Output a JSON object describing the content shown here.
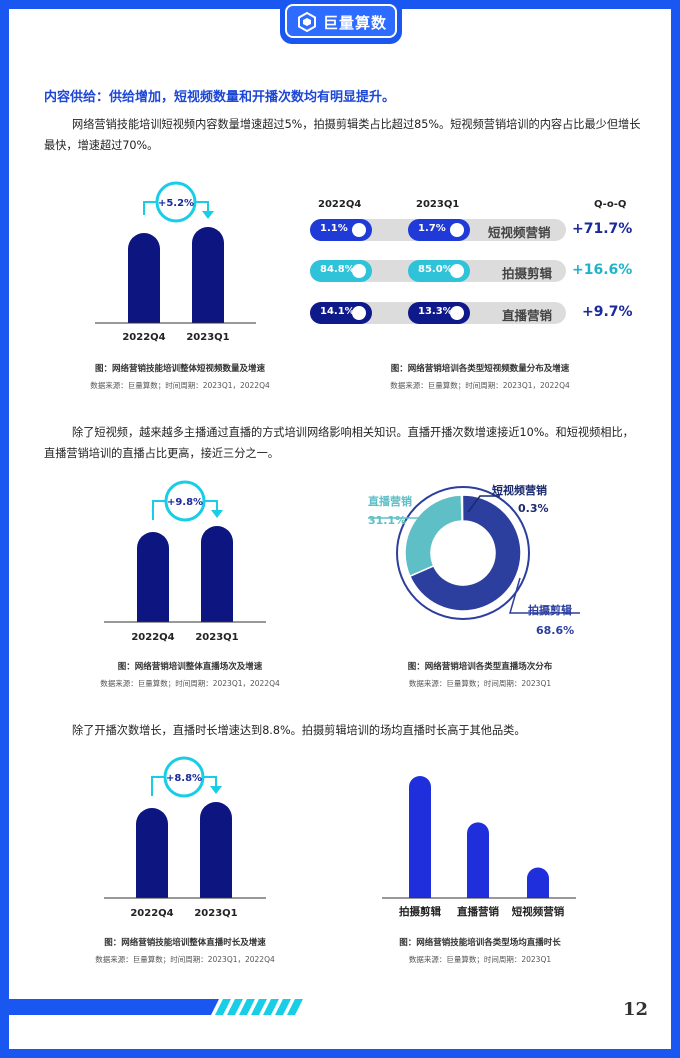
{
  "header": {
    "logo_text": "巨量算数"
  },
  "section": {
    "heading": "内容供给：供给增加，短视频数量和开播次数均有明显提升。",
    "para1": "网络营销技能培训短视频内容数量增速超过5%，拍摄剪辑类占比超过85%。短视频营销培训的内容占比最少但增长最快，增速超过70%。",
    "para2": "除了短视频，越来越多主播通过直播的方式培训网络影响相关知识。直播开播次数增速接近10%。和短视频相比，直播营销培训的直播占比更高，接近三分之一。",
    "para3": "除了开播次数增长，直播时长增速达到8.8%。拍摄剪辑培训的场均直播时长高于其他品类。"
  },
  "chart1": {
    "caption": "图：网络营销技能培训整体短视频数量及增速",
    "source": "数据来源：巨量算数；时间周期：2023Q1，2022Q4",
    "growth_label": "+5.2%",
    "chart_data": {
      "type": "bar",
      "categories": [
        "2022Q4",
        "2023Q1"
      ],
      "values": [
        1.0,
        1.052
      ],
      "annotation": "+5.2%"
    }
  },
  "chart2": {
    "caption": "图：网络营销培训各类型短视频数量分布及增速",
    "source": "数据来源：巨量算数；时间周期：2023Q1，2022Q4",
    "col_2022": "2022Q4",
    "col_2023": "2023Q1",
    "col_qoq": "Q-o-Q",
    "rows": [
      {
        "category": "短视频营销",
        "v2022": "1.1%",
        "v2023": "1.7%",
        "qoq": "+71.7%",
        "color": "#1f3ad6",
        "qoq_color": "#1a2a9c"
      },
      {
        "category": "拍摄剪辑",
        "v2022": "84.8%",
        "v2023": "85.0%",
        "qoq": "+16.6%",
        "color": "#2ec3d8",
        "qoq_color": "#1fb3c9"
      },
      {
        "category": "直播营销",
        "v2022": "14.1%",
        "v2023": "13.3%",
        "qoq": "+9.7%",
        "color": "#0f1a8a",
        "qoq_color": "#1a2a9c"
      }
    ],
    "chart_data": {
      "type": "table",
      "columns": [
        "2022Q4",
        "2023Q1",
        "Q-o-Q"
      ],
      "rows": [
        {
          "name": "短视频营销",
          "values": [
            1.1,
            1.7,
            71.7
          ]
        },
        {
          "name": "拍摄剪辑",
          "values": [
            84.8,
            85.0,
            16.6
          ]
        },
        {
          "name": "直播营销",
          "values": [
            14.1,
            13.3,
            9.7
          ]
        }
      ]
    }
  },
  "chart3": {
    "caption": "图：网络营销培训整体直播场次及增速",
    "source": "数据来源：巨量算数；时间周期：2023Q1，2022Q4",
    "growth_label": "+9.8%",
    "chart_data": {
      "type": "bar",
      "categories": [
        "2022Q4",
        "2023Q1"
      ],
      "values": [
        1.0,
        1.098
      ],
      "annotation": "+9.8%"
    }
  },
  "chart4": {
    "caption": "图：网络营销培训各类型直播场次分布",
    "source": "数据来源：巨量算数；时间周期：2023Q1",
    "chart_data": {
      "type": "pie",
      "slices": [
        {
          "name": "短视频营销",
          "value": 0.3,
          "label": "0.3%",
          "color": "#1a2a6e"
        },
        {
          "name": "拍摄剪辑",
          "value": 68.6,
          "label": "68.6%",
          "color": "#2c3e9e"
        },
        {
          "name": "直播营销",
          "value": 31.1,
          "label": "31.1%",
          "color": "#5fbfc6"
        }
      ]
    }
  },
  "chart5": {
    "caption": "图：网络营销技能培训整体直播时长及增速",
    "source": "数据来源：巨量算数；时间周期：2023Q1，2022Q4",
    "growth_label": "+8.8%",
    "chart_data": {
      "type": "bar",
      "categories": [
        "2022Q4",
        "2023Q1"
      ],
      "values": [
        1.0,
        1.088
      ],
      "annotation": "+8.8%"
    }
  },
  "chart6": {
    "caption": "图：网络营销技能培训各类型场均直播时长",
    "source": "数据来源：巨量算数；时间周期：2023Q1",
    "chart_data": {
      "type": "bar",
      "categories": [
        "拍摄剪辑",
        "直播营销",
        "短视频营销"
      ],
      "values": [
        100,
        62,
        25
      ]
    }
  },
  "footer": {
    "page_number": "12"
  },
  "colors": {
    "brand": "#1a56f0",
    "bar_dark": "#0c1580",
    "bar_blue": "#1f2fdc",
    "accent_cyan": "#18cde6"
  }
}
